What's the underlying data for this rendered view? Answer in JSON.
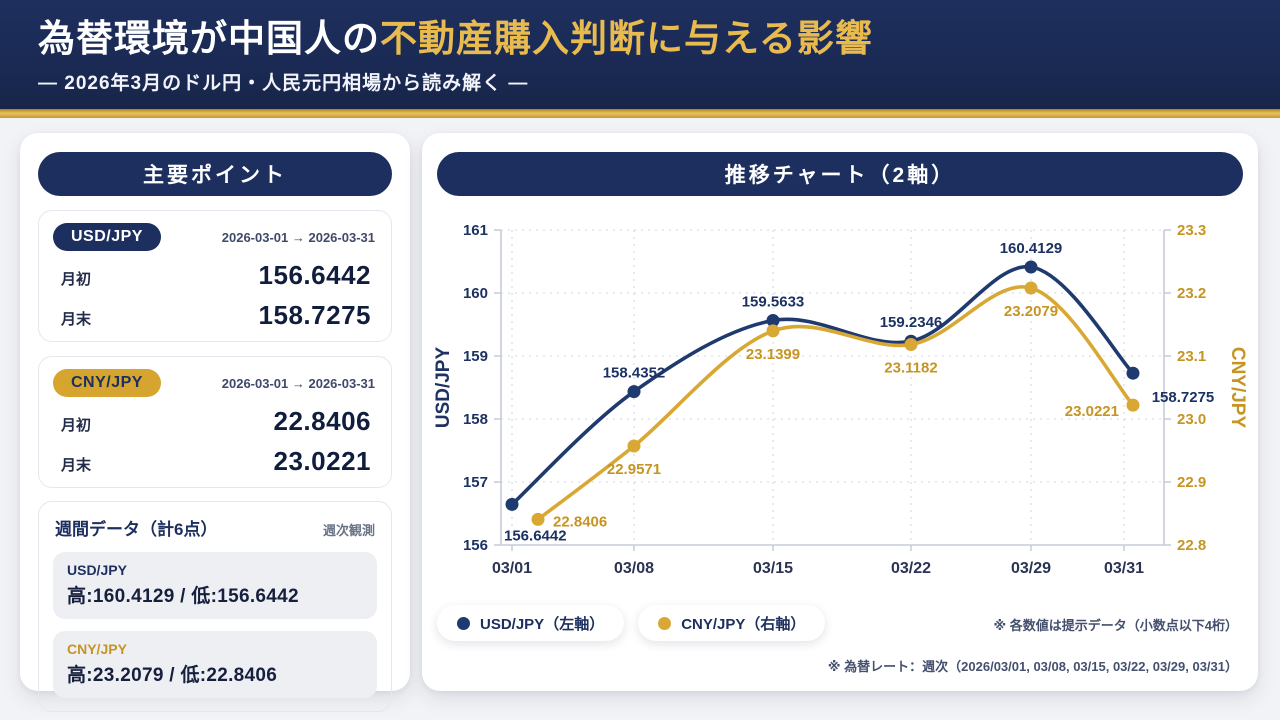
{
  "header": {
    "title_white": "為替環境が中国人の",
    "title_gold": "不動産購入判断に与える影響",
    "subtitle": "— 2026年3月のドル円・人民元円相場から読み解く —"
  },
  "colors": {
    "navy": "#1d2f5e",
    "gold": "#d5a52f",
    "chart_navy": "#1f3a6e",
    "chart_gold": "#d9a834",
    "title_gold": "#e9bb4f"
  },
  "key_points": {
    "title": "主要ポイント",
    "cards": [
      {
        "pair": "USD/JPY",
        "period": "2026-03-01 → 2026-03-31",
        "rows": [
          {
            "label": "月初",
            "value": "156.6442"
          },
          {
            "label": "月末",
            "value": "158.7275"
          }
        ]
      },
      {
        "pair": "CNY/JPY",
        "period": "2026-03-01 → 2026-03-31",
        "rows": [
          {
            "label": "月初",
            "value": "22.8406"
          },
          {
            "label": "月末",
            "value": "23.0221"
          }
        ]
      }
    ],
    "weekly": {
      "title": "週間データ（計6点）",
      "note": "週次観測",
      "items": [
        {
          "pair": "USD/JPY",
          "range": "高:160.4129 / 低:156.6442"
        },
        {
          "pair": "CNY/JPY",
          "range": "高:23.2079 / 低:22.8406"
        }
      ]
    }
  },
  "chart_panel": {
    "title": "推移チャート（2軸）",
    "note1": "※ 各数値は提示データ（小数点以下4桁）",
    "note2": "※ 為替レート：週次（2026/03/01, 03/08, 03/15, 03/22, 03/29, 03/31）"
  },
  "chart_data": {
    "type": "line",
    "title": "推移チャート（2軸）",
    "categories": [
      "03/01",
      "03/08",
      "03/15",
      "03/22",
      "03/29",
      "03/31"
    ],
    "series": [
      {
        "name": "USD/JPY（左軸）",
        "axis": "left",
        "color": "#1f3a6e",
        "values": [
          156.6442,
          158.4352,
          159.5633,
          159.2346,
          160.4129,
          158.7275
        ]
      },
      {
        "name": "CNY/JPY（右軸）",
        "axis": "right",
        "color": "#d9a834",
        "values": [
          22.8406,
          22.9571,
          23.1399,
          23.1182,
          23.2079,
          23.0221
        ]
      }
    ],
    "left_axis": {
      "label": "USD/JPY",
      "min": 156,
      "max": 161,
      "step": 1,
      "tick_color": "#1c3263"
    },
    "right_axis": {
      "label": "CNY/JPY",
      "min": 22.8,
      "max": 23.3,
      "step": 0.1,
      "tick_color": "#c79422"
    },
    "grid": true,
    "legend_position": "bottom",
    "value_label_decimals": 4
  }
}
